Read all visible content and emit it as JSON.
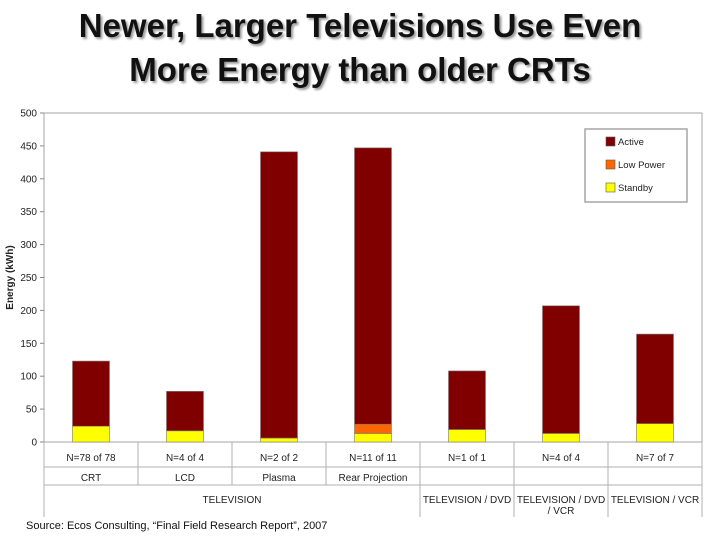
{
  "slide": {
    "title_line1": "Newer, Larger Televisions Use Even",
    "title_line2": "More Energy than older CRTs",
    "source": "Source: Ecos Consulting, “Final Field Research Report”, 2007"
  },
  "chart_data": {
    "type": "bar",
    "stacked": true,
    "title": "",
    "ylabel": "Energy (kWh)",
    "xlabel": "",
    "ylim": [
      0,
      500
    ],
    "ytick_step": 50,
    "grid": false,
    "legend_position": "top-right",
    "categories": [
      "CRT",
      "LCD",
      "Plasma",
      "Rear Projection",
      "",
      "",
      ""
    ],
    "sample_sizes": [
      "N=78 of 78",
      "N=4 of 4",
      "N=2 of 2",
      "N=11 of 11",
      "N=1 of 1",
      "N=4 of 4",
      "N=7 of 7"
    ],
    "groups": [
      {
        "label": "TELEVISION",
        "span": [
          0,
          3
        ]
      },
      {
        "label": "TELEVISION / DVD",
        "span": [
          4,
          4
        ]
      },
      {
        "label": "TELEVISION / DVD / VCR",
        "span": [
          5,
          5
        ]
      },
      {
        "label": "TELEVISION / VCR",
        "span": [
          6,
          6
        ]
      }
    ],
    "series": [
      {
        "name": "Standby",
        "color": "#ffff00",
        "values": [
          24,
          17,
          6,
          13,
          19,
          13,
          28
        ]
      },
      {
        "name": "Low Power",
        "color": "#ff6600",
        "values": [
          0,
          0,
          0,
          14,
          0,
          0,
          0
        ]
      },
      {
        "name": "Active",
        "color": "#800000",
        "values": [
          99,
          60,
          435,
          420,
          89,
          194,
          136
        ]
      }
    ],
    "legend_order": [
      "Active",
      "Low Power",
      "Standby"
    ]
  }
}
